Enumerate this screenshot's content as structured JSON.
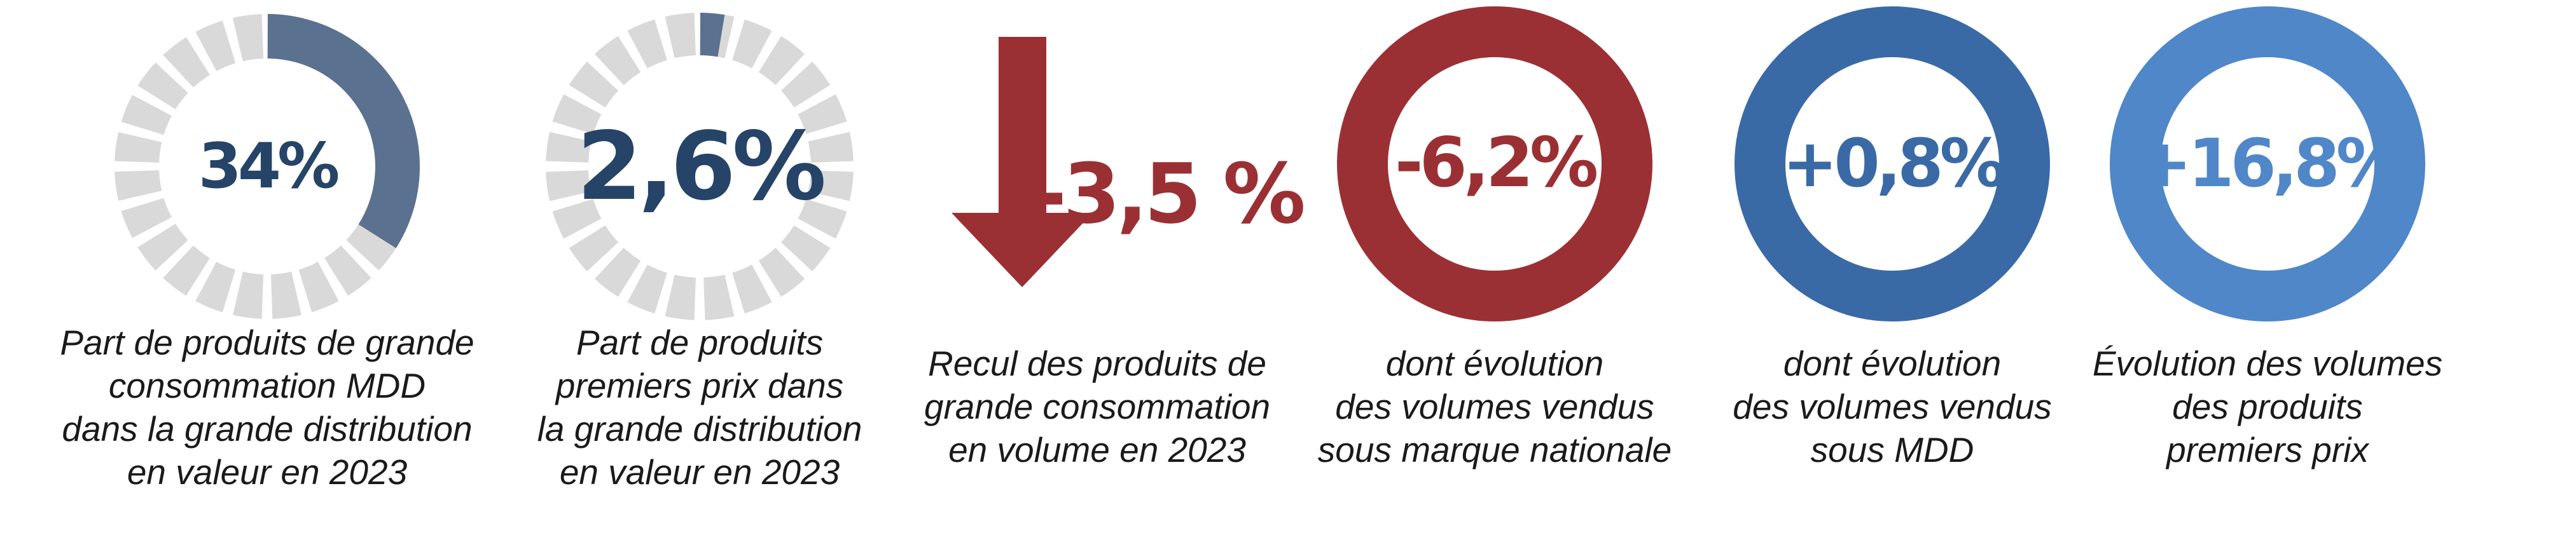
{
  "colors": {
    "navy": "#264467",
    "slate": "#5b7190",
    "gray_segment": "#d9d9d9",
    "dark_red": "#9b3034",
    "mid_blue": "#3a6aa6",
    "light_blue": "#4f87c9"
  },
  "chart_data": [
    {
      "type": "segmented-donut",
      "value": 34,
      "value_label": "34%",
      "segments": 24,
      "caption": [
        "Part de produits de grande",
        "consommation MDD",
        "dans la grande distribution",
        "en valeur en 2023"
      ]
    },
    {
      "type": "segmented-donut",
      "value": 2.6,
      "value_label": "2,6%",
      "segments": 24,
      "caption": [
        "Part de produits",
        "premiers prix dans",
        "la grande distribution",
        "en valeur en 2023"
      ]
    },
    {
      "type": "arrow-indicator",
      "direction": "down",
      "value": -3.5,
      "value_label": "-3,5 %",
      "caption": [
        "Recul des produits de",
        "grande consommation",
        "en volume en 2023"
      ]
    },
    {
      "type": "ring",
      "value": -6.2,
      "value_label": "-6,2%",
      "caption": [
        "dont évolution",
        "des volumes vendus",
        "sous marque nationale"
      ]
    },
    {
      "type": "ring",
      "value": 0.8,
      "value_label": "+0,8%",
      "caption": [
        "dont évolution",
        "des volumes vendus",
        "sous MDD"
      ]
    },
    {
      "type": "ring",
      "value": 16.8,
      "value_label": "+16,8%",
      "caption": [
        "Évolution des volumes",
        "des produits",
        "premiers prix"
      ]
    }
  ]
}
